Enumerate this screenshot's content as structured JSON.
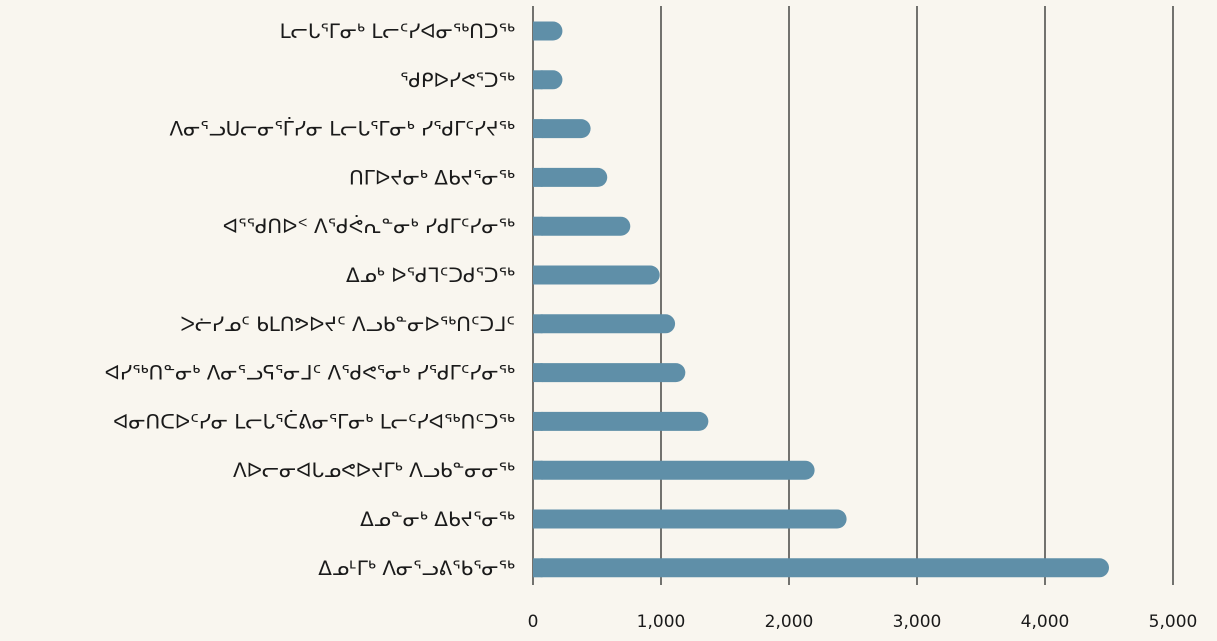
{
  "chart_data": {
    "type": "bar",
    "orientation": "horizontal",
    "title": "",
    "xlabel": "",
    "ylabel": "",
    "xlim": [
      0,
      5000
    ],
    "x_ticks": [
      0,
      1000,
      2000,
      3000,
      4000,
      5000
    ],
    "x_tick_labels": [
      "0",
      "1,000",
      "2,000",
      "3,000",
      "4,000",
      "5,000"
    ],
    "grid": "vertical",
    "legend": "none",
    "bar_color": "#5f8fa8",
    "background_color": "#f9f6ef",
    "grid_color": "#1a1a1a",
    "categories": [
      "ᒪᓕᒐᕐᒥᓂᒃ ᒪᓕᑦᓯᐊᓂᖅᑎᑐᖅ",
      "ᖁᑭᐅᓯᕙᕐᑐᖅ",
      "ᐱᓂᕐᓗᑌᓕᓂᕐᒦᓯᓂ ᒪᓕᒐᕐᒥᓂᒃ ᓯᕐᑯᒥᑦᓯᔪᖅ",
      "ᑎᒥᐅᔪᓂᒃ ᐃᑲᔪᕐᓂᖅ",
      "ᐊᕐᕐᑯᑎᐅᑉ ᐱᕐᑯᕚᕆᓐᓂᒃ ᓯᑯᒥᑦᓯᓂᖅ",
      "ᐃᓄᒃ ᐅᕐᑯᒣᑦᑐᑯᕐᑐᖅ",
      "ᐳᓖᓯᓄᑦ ᑲᒪᑎᕗᐅᔪᑦ ᐱᓗᑲᓐᓂᐅᖅᑎᑦᑐᒧᑦ",
      "ᐊᓯᖅᑎᓐᓂᒃ ᐱᓂᕐᓗᕋᕐᓂᒧᑦ ᐱᕐᑯᕙᕐᓂᒃ ᓯᕐᑯᒥᑦᓯᓂᖅ",
      "ᐊᓂᑎᑕᐅᑦᓯᓂ ᒪᓕᒐᕐᑖᕕᓂᕐᒥᓂᒃ ᒪᓕᑦᓯᐊᖅᑎᑦᑐᖅ",
      "ᐱᐅᓕᓂᐊᒐᓄᕙᐅᔪᒥᒃ ᐱᓗᑲᓐᓂᓂᖅ",
      "ᐃᓄᓐᓂᒃ ᐃᑲᔪᕐᓂᖅ",
      "ᐃᓄᒻᒥᒃ ᐱᓂᕐᓗᕕᕐᑲᕐᓂᖅ"
    ],
    "values": [
      230,
      230,
      450,
      580,
      760,
      990,
      1110,
      1190,
      1370,
      2200,
      2450,
      4500
    ]
  }
}
